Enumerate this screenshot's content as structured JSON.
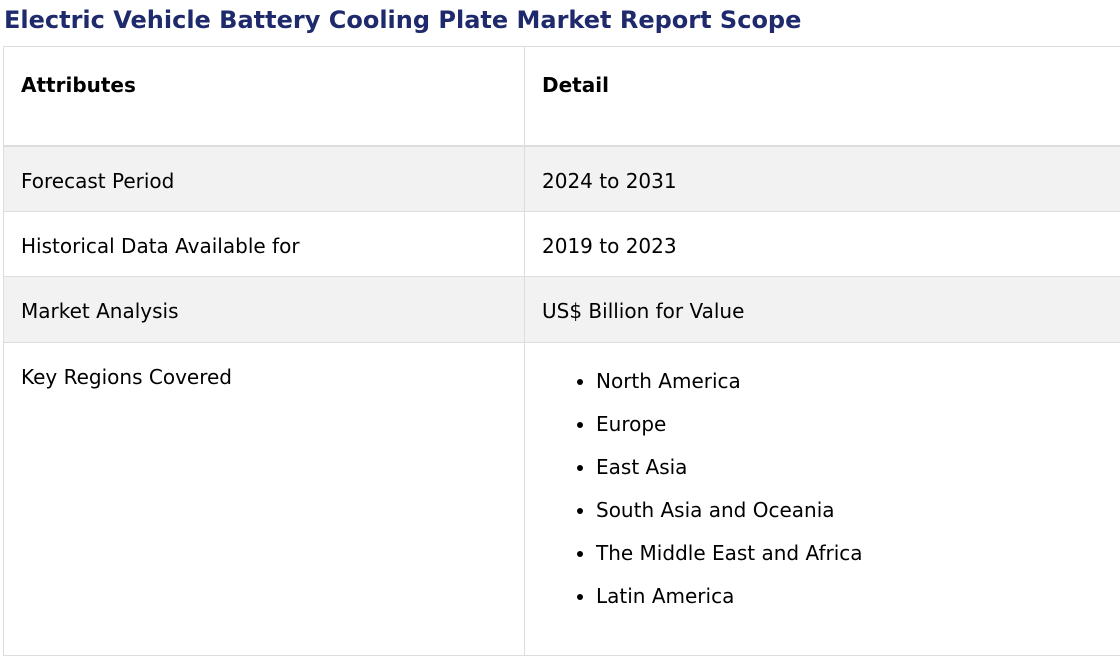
{
  "report": {
    "title": "Electric Vehicle Battery Cooling Plate Market Report Scope"
  },
  "table": {
    "headers": {
      "attributes": "Attributes",
      "detail": "Detail"
    },
    "rows": [
      {
        "attribute": "Forecast Period",
        "detail": "2024 to 2031"
      },
      {
        "attribute": "Historical Data Available for",
        "detail": "2019 to 2023"
      },
      {
        "attribute": "Market Analysis",
        "detail": "US$ Billion for Value"
      },
      {
        "attribute": "Key Regions Covered",
        "regions": [
          "North America",
          "Europe",
          "East Asia",
          "South Asia and Oceania",
          "The Middle East and Africa",
          "Latin America"
        ]
      }
    ]
  },
  "colors": {
    "title": "#1f2a6d",
    "stripe": "#f2f2f2",
    "border": "#dddddd"
  }
}
